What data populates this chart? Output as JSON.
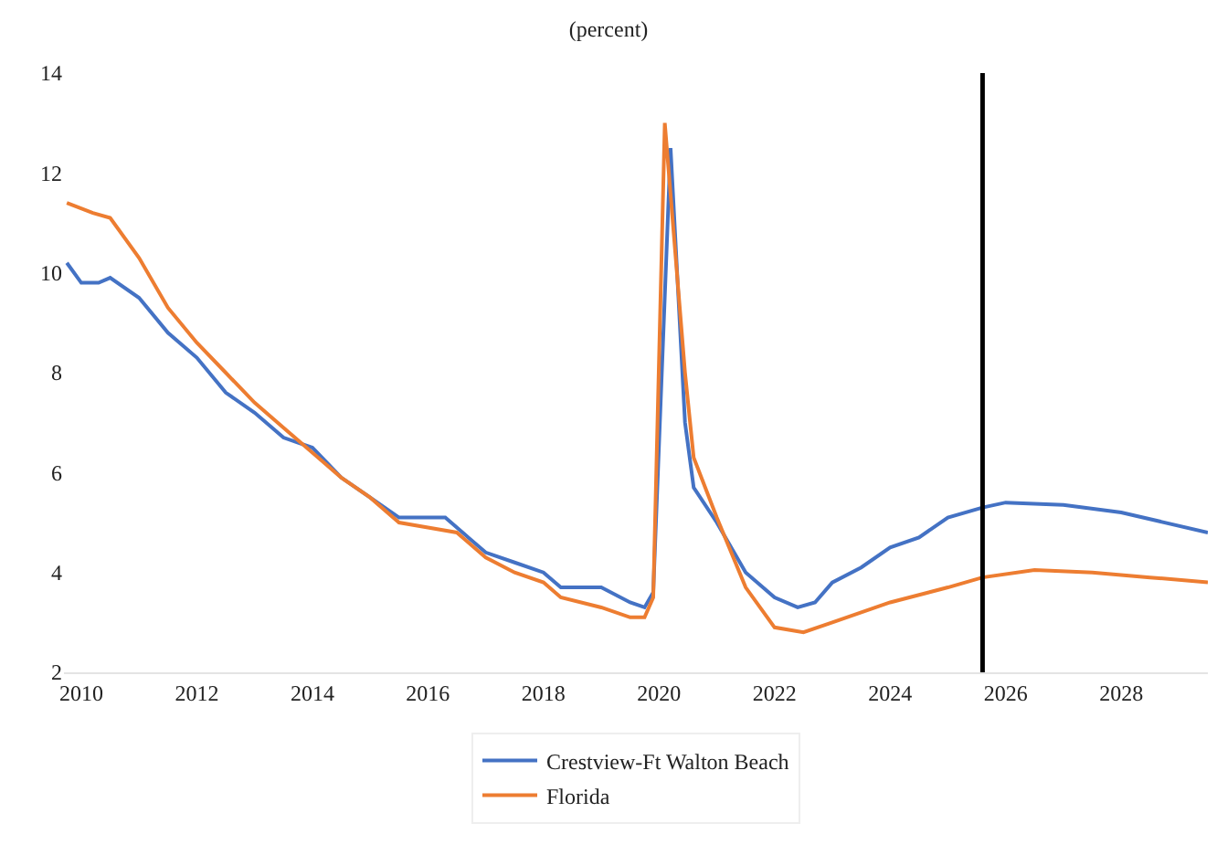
{
  "chart_data": {
    "type": "line",
    "title": "(percent)",
    "xlim": [
      2009.7,
      2029.5
    ],
    "xticks": [
      2010,
      2012,
      2014,
      2016,
      2018,
      2020,
      2022,
      2024,
      2026,
      2028
    ],
    "ylim": [
      2,
      14
    ],
    "yticks": [
      2,
      4,
      6,
      8,
      10,
      12,
      14
    ],
    "grid": false,
    "legend": "bottom",
    "line_style": "solid",
    "marker": "none",
    "series": [
      {
        "name": "Crestview-Ft Walton Beach",
        "color": "#4472c4",
        "x": [
          2009.75,
          2010,
          2010.3,
          2010.5,
          2011,
          2011.5,
          2012,
          2012.5,
          2013,
          2013.5,
          2014,
          2014.5,
          2015,
          2015.5,
          2016,
          2016.3,
          2016.7,
          2017,
          2017.5,
          2018,
          2018.3,
          2019,
          2019.5,
          2019.75,
          2019.9,
          2020.2,
          2020.45,
          2020.6,
          2021,
          2021.5,
          2022,
          2022.4,
          2022.7,
          2023,
          2023.5,
          2024,
          2024.5,
          2025,
          2025.6,
          2026,
          2027,
          2028,
          2029.5
        ],
        "values": [
          10.2,
          9.8,
          9.8,
          9.9,
          9.5,
          8.8,
          8.3,
          7.6,
          7.2,
          6.7,
          6.5,
          5.9,
          5.5,
          5.1,
          5.1,
          5.1,
          4.7,
          4.4,
          4.2,
          4.0,
          3.7,
          3.7,
          3.4,
          3.3,
          3.6,
          12.5,
          7.0,
          5.7,
          5.0,
          4.0,
          3.5,
          3.3,
          3.4,
          3.8,
          4.1,
          4.5,
          4.7,
          5.1,
          5.3,
          5.4,
          5.35,
          5.2,
          4.8
        ]
      },
      {
        "name": "Florida",
        "color": "#ed7d31",
        "x": [
          2009.75,
          2010.2,
          2010.5,
          2011,
          2011.5,
          2012,
          2012.5,
          2013,
          2013.5,
          2014,
          2014.5,
          2015,
          2015.5,
          2016,
          2016.5,
          2017,
          2017.5,
          2018,
          2018.3,
          2019,
          2019.5,
          2019.75,
          2019.9,
          2020.1,
          2020.45,
          2020.6,
          2021,
          2021.5,
          2022,
          2022.5,
          2023,
          2024,
          2025,
          2025.6,
          2026.5,
          2027.5,
          2028.5,
          2029.5
        ],
        "values": [
          11.4,
          11.2,
          11.1,
          10.3,
          9.3,
          8.6,
          8.0,
          7.4,
          6.9,
          6.4,
          5.9,
          5.5,
          5.0,
          4.9,
          4.8,
          4.3,
          4.0,
          3.8,
          3.5,
          3.3,
          3.1,
          3.1,
          3.5,
          13.0,
          8.0,
          6.3,
          5.1,
          3.7,
          2.9,
          2.8,
          3.0,
          3.4,
          3.7,
          3.9,
          4.05,
          4.0,
          3.9,
          3.8
        ]
      }
    ],
    "ref_lines": [
      {
        "axis": "x",
        "value": 2025.6,
        "color": "#000000"
      }
    ]
  }
}
